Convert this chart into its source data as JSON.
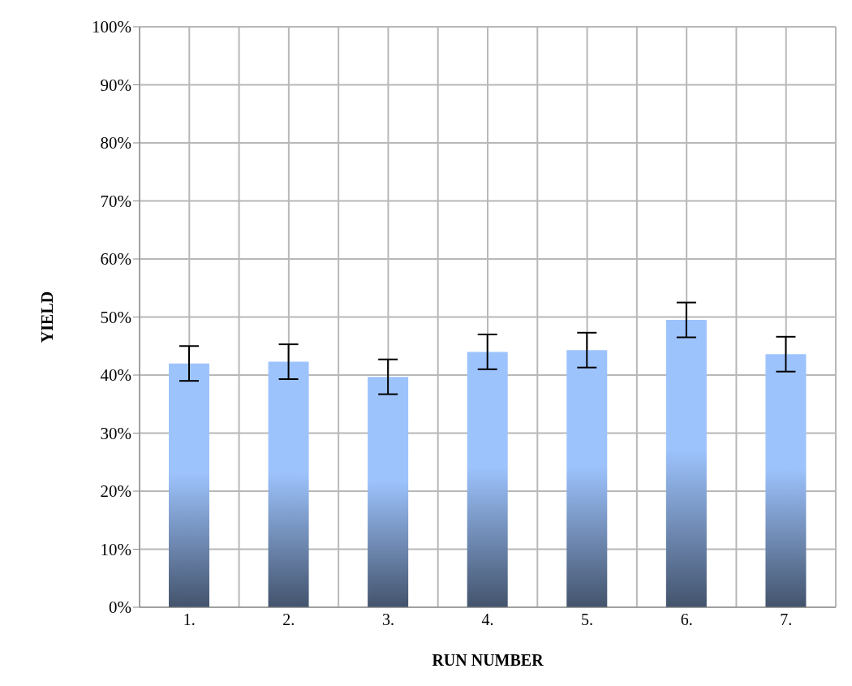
{
  "chart_data": {
    "type": "bar",
    "xlabel": "RUN NUMBER",
    "ylabel": "YIELD",
    "categories": [
      "1.",
      "2.",
      "3.",
      "4.",
      "5.",
      "6.",
      "7."
    ],
    "values": [
      42.0,
      42.3,
      39.7,
      44.0,
      44.3,
      49.5,
      43.6
    ],
    "errors": [
      3,
      3,
      3,
      3,
      3,
      3,
      3
    ],
    "color": "#9dc3fd",
    "ylim": [
      0,
      100
    ],
    "yticks": [
      {
        "value": 0,
        "label": "0%"
      },
      {
        "value": 10,
        "label": "10%"
      },
      {
        "value": 20,
        "label": "20%"
      },
      {
        "value": 30,
        "label": "30%"
      },
      {
        "value": 40,
        "label": "40%"
      },
      {
        "value": 50,
        "label": "50%"
      },
      {
        "value": 60,
        "label": "60%"
      },
      {
        "value": 70,
        "label": "70%"
      },
      {
        "value": 80,
        "label": "80%"
      },
      {
        "value": 90,
        "label": "90%"
      },
      {
        "value": 100,
        "label": "100%"
      }
    ],
    "grid": true
  }
}
